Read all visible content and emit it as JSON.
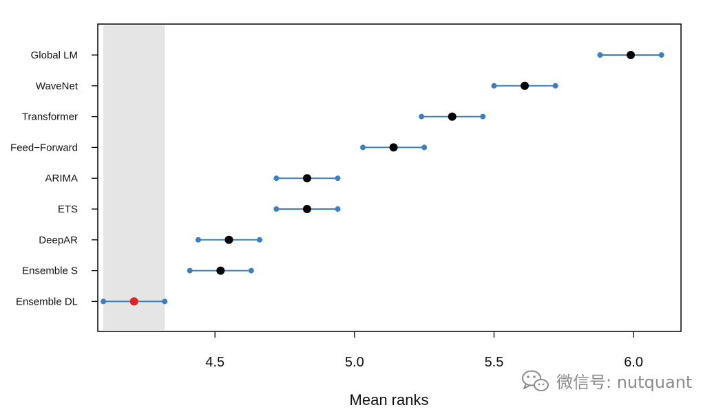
{
  "chart_data": {
    "type": "scatter",
    "title": "",
    "xlabel": "Mean ranks",
    "ylabel": "",
    "xlim": [
      4.08,
      6.17
    ],
    "xticks": [
      "4.5",
      "5.0",
      "5.5",
      "6.0"
    ],
    "grid": false,
    "critical_difference_band": [
      4.1,
      4.32
    ],
    "categories": [
      "Global LM",
      "WaveNet",
      "Transformer",
      "Feed-Forward",
      "ARIMA",
      "ETS",
      "DeepAR",
      "Ensemble S",
      "Ensemble DL"
    ],
    "category_labels": [
      "Global LM",
      "WaveNet",
      "Transformer",
      "Feed−Forward",
      "ARIMA",
      "ETS",
      "DeepAR",
      "Ensemble S",
      "Ensemble DL"
    ],
    "series": [
      {
        "name": "Mean rank",
        "values": [
          5.99,
          5.61,
          5.35,
          5.14,
          4.83,
          4.83,
          4.55,
          4.52,
          4.21
        ]
      },
      {
        "name": "Interval lower",
        "values": [
          5.88,
          5.5,
          5.24,
          5.03,
          4.72,
          4.72,
          4.44,
          4.41,
          4.1
        ]
      },
      {
        "name": "Interval upper",
        "values": [
          6.1,
          5.72,
          5.46,
          5.25,
          4.94,
          4.94,
          4.66,
          4.63,
          4.32
        ]
      }
    ],
    "highlight": "Ensemble DL"
  },
  "colors": {
    "interval": "#3a7fbf",
    "mean_point": "#000000",
    "highlight_point": "#e8201b",
    "band": "#e5e5e5",
    "axis": "#000000"
  },
  "watermark": {
    "icon": "wechat-icon",
    "text": "微信号: nutquant"
  }
}
